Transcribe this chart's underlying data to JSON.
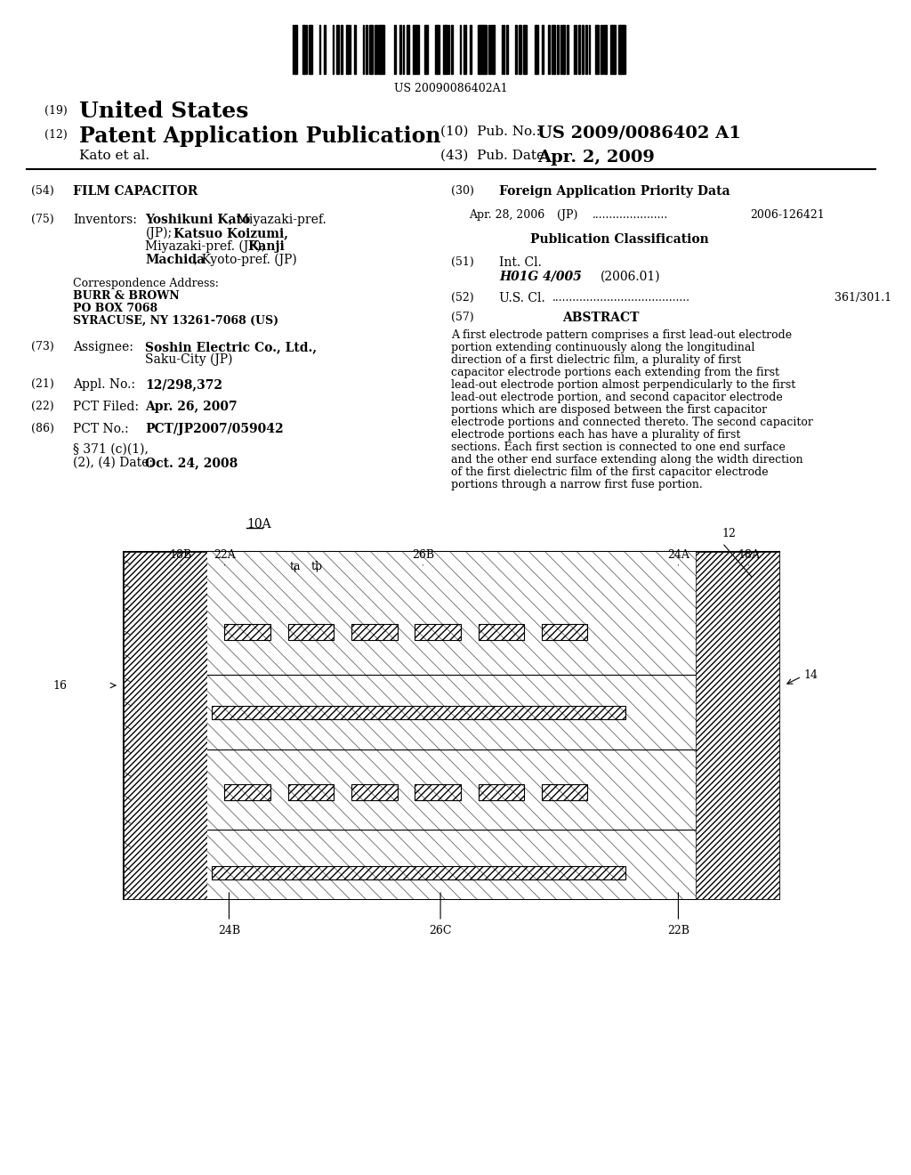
{
  "title": "FILM CAPACITOR",
  "barcode_text": "US 20090086402A1",
  "pub_number": "US 2009/0086402 A1",
  "pub_date": "Apr. 2, 2009",
  "inventors": "Yoshikuni Kato, Miyazaki-pref. (JP); Katsuo Koizumi, Miyazaki-pref. (JP); Kanji Machida, Kyoto-pref. (JP)",
  "assignee": "Soshin Electric Co., Ltd., Saku-City (JP)",
  "appl_no": "12/298,372",
  "pct_filed": "Apr. 26, 2007",
  "pct_no": "PCT/JP2007/059042",
  "date_371": "Oct. 24, 2008",
  "correspondence": "BURR & BROWN\nPO BOX 7068\nSYRACUSE, NY 13261-7068 (US)",
  "int_cl": "H01G 4/005",
  "int_cl_year": "(2006.01)",
  "us_cl": "361/301.1",
  "abstract": "A first electrode pattern comprises a first lead-out electrode portion extending continuously along the longitudinal direction of a first dielectric film, a plurality of first capacitor electrode portions each extending from the first lead-out electrode portion almost perpendicularly to the first lead-out electrode portion, and second capacitor electrode portions which are disposed between the first capacitor electrode portions and connected thereto. The second capacitor electrode portions each has have a plurality of first sections. Each first section is connected to one end surface and the other end surface extending along the width direction of the first dielectric film of the first capacitor electrode portions through a narrow first fuse portion.",
  "diagram_label": "10A",
  "background_color": "#ffffff",
  "text_color": "#000000"
}
